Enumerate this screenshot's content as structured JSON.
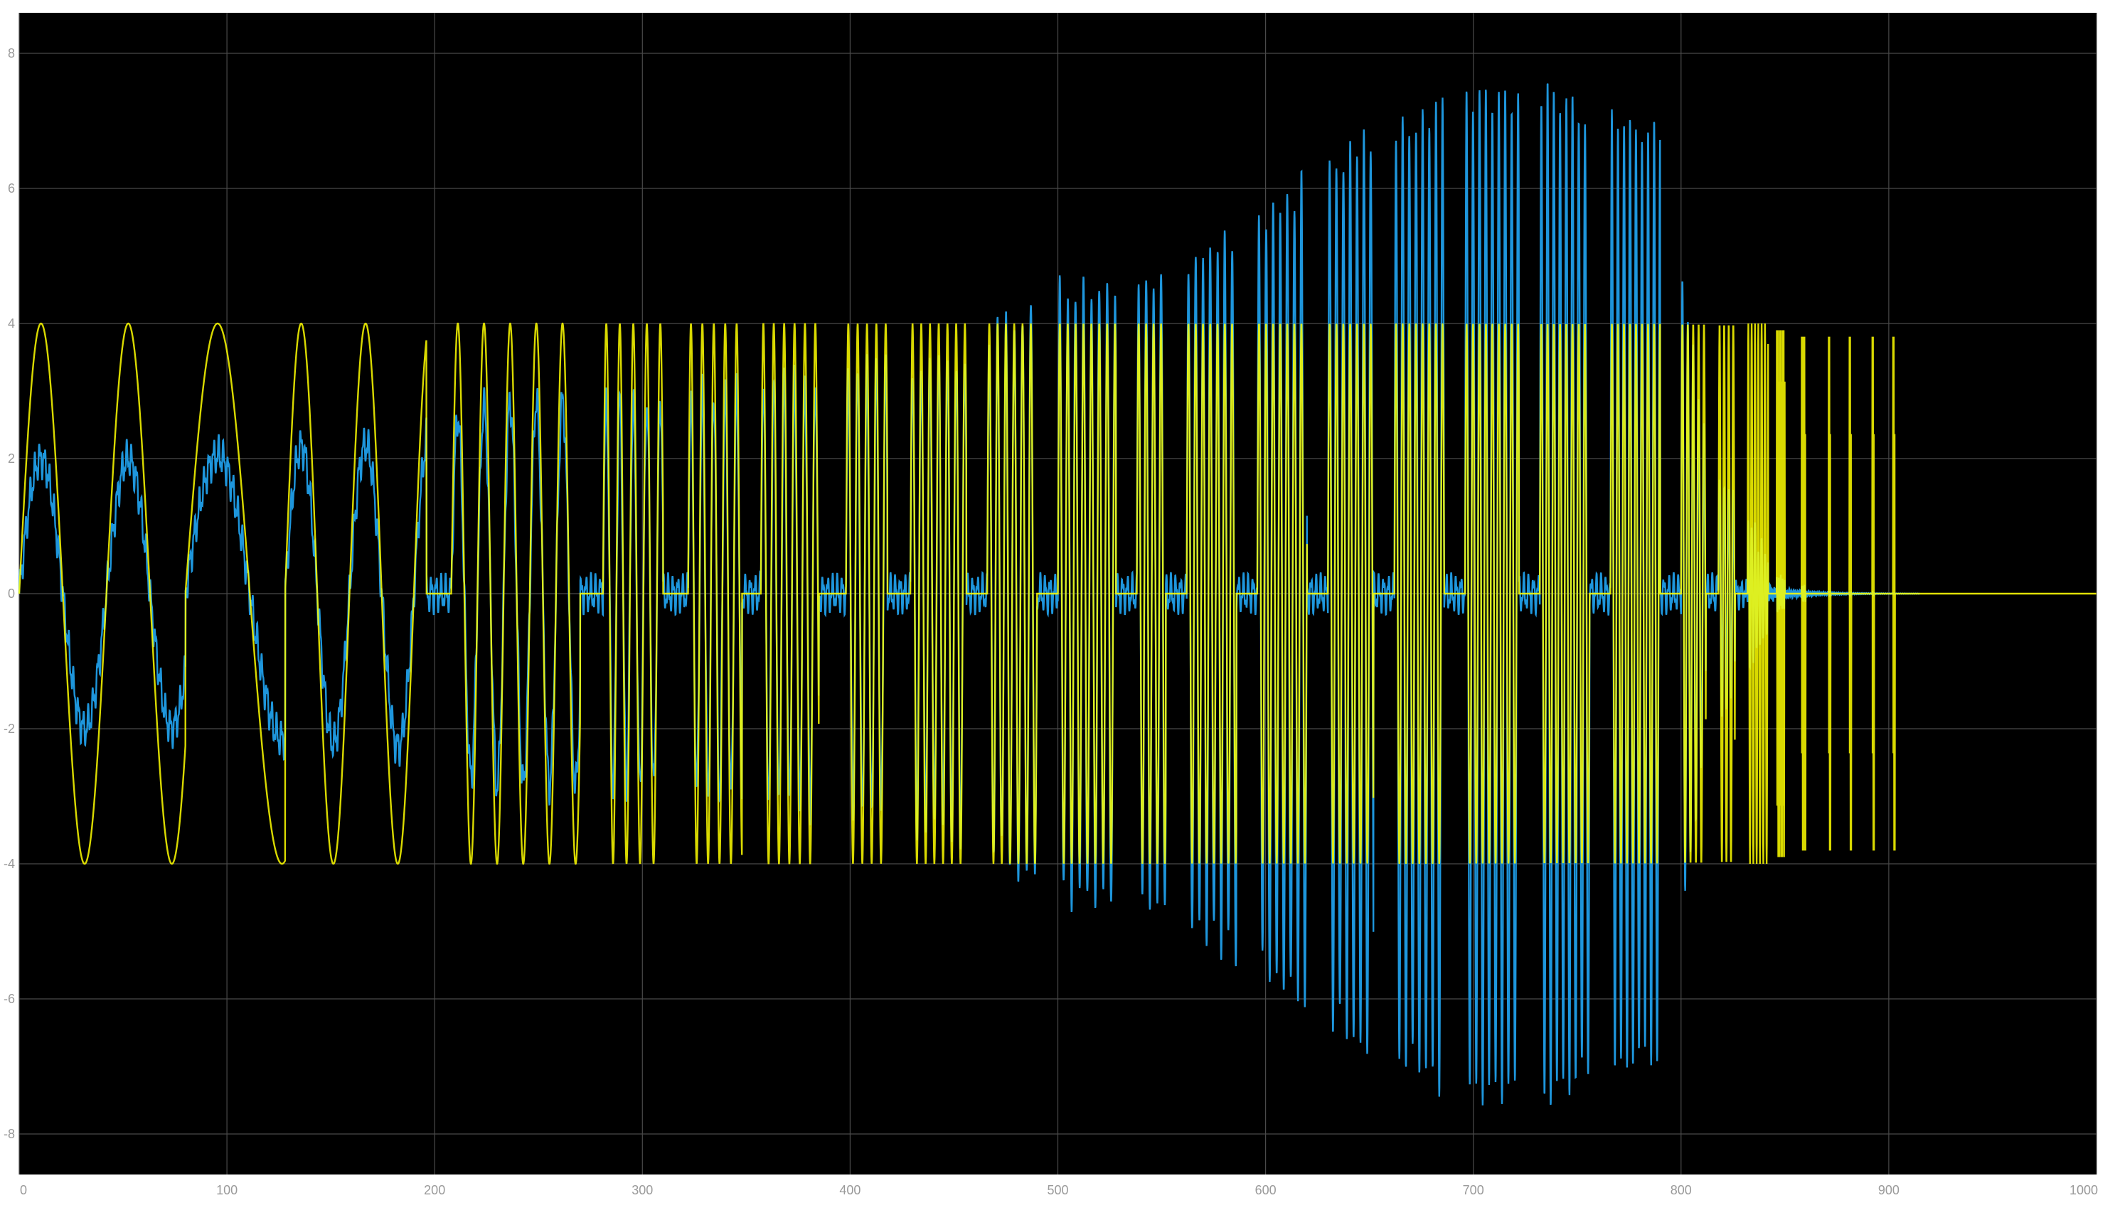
{
  "chart_data": {
    "type": "line",
    "title": "",
    "xlabel": "",
    "ylabel": "",
    "xlim": [
      0,
      1000
    ],
    "ylim": [
      -8.6,
      8.6
    ],
    "grid": true,
    "background": "#000000",
    "axes_color": "#9a9a9a",
    "grid_color": "#4a4a4a",
    "x_ticks": [
      "0",
      "100",
      "200",
      "300",
      "400",
      "500",
      "600",
      "700",
      "800",
      "900",
      "1000"
    ],
    "x_tick_values": [
      0,
      100,
      200,
      300,
      400,
      500,
      600,
      700,
      800,
      900,
      1000
    ],
    "y_ticks": [
      "8",
      "6",
      "4",
      "2",
      "0",
      "-2",
      "-4",
      "-6",
      "-8"
    ],
    "y_tick_values": [
      8,
      6,
      4,
      2,
      0,
      -2,
      -4,
      -6,
      -8
    ],
    "series": [
      {
        "color": "#ffff00",
        "kind": "reference input",
        "amplitude": 4,
        "end_x": 905,
        "bursts": [
          {
            "x_start": 0,
            "x_end": 80,
            "period": 42,
            "kind": "smooth"
          },
          {
            "x_start": 80,
            "x_end": 128,
            "period": 62,
            "kind": "smooth"
          },
          {
            "x_start": 128,
            "x_end": 196,
            "period": 31,
            "kind": "smooth"
          },
          {
            "x_start": 208,
            "x_end": 270,
            "period": 12.6,
            "kind": "smooth"
          },
          {
            "x_start": 281,
            "x_end": 310,
            "period": 6.5,
            "kind": "burst"
          },
          {
            "x_start": 322,
            "x_end": 348,
            "period": 5.5,
            "kind": "burst"
          },
          {
            "x_start": 357,
            "x_end": 385,
            "period": 5.0,
            "kind": "burst"
          },
          {
            "x_start": 398,
            "x_end": 418,
            "period": 4.5,
            "kind": "burst"
          },
          {
            "x_start": 429,
            "x_end": 456,
            "period": 4.2,
            "kind": "burst"
          },
          {
            "x_start": 466,
            "x_end": 490,
            "period": 4.0,
            "kind": "burst"
          },
          {
            "x_start": 500,
            "x_end": 528,
            "period": 3.8,
            "kind": "burst"
          },
          {
            "x_start": 538,
            "x_end": 552,
            "period": 3.6,
            "kind": "burst"
          },
          {
            "x_start": 562,
            "x_end": 586,
            "period": 3.5,
            "kind": "burst"
          },
          {
            "x_start": 596,
            "x_end": 620,
            "period": 3.4,
            "kind": "burst"
          },
          {
            "x_start": 630,
            "x_end": 652,
            "period": 3.3,
            "kind": "burst"
          },
          {
            "x_start": 662,
            "x_end": 686,
            "period": 3.2,
            "kind": "burst"
          },
          {
            "x_start": 696,
            "x_end": 722,
            "period": 3.1,
            "kind": "burst"
          },
          {
            "x_start": 732,
            "x_end": 756,
            "period": 3.0,
            "kind": "burst"
          },
          {
            "x_start": 766,
            "x_end": 790,
            "period": 2.9,
            "kind": "burst"
          },
          {
            "x_start": 800,
            "x_end": 812,
            "period": 2.6,
            "kind": "burst"
          },
          {
            "x_start": 818,
            "x_end": 826,
            "period": 2.2,
            "kind": "burst"
          },
          {
            "x_start": 832,
            "x_end": 842,
            "period": 1.6,
            "kind": "burst"
          },
          {
            "x_start": 846,
            "x_end": 850,
            "period": 1.4,
            "kind": "spikes"
          },
          {
            "x_start": 858,
            "x_end": 860,
            "period": 1.0,
            "kind": "spikes"
          },
          {
            "x_start": 871,
            "x_end": 872,
            "period": 1.0,
            "kind": "spikes"
          },
          {
            "x_start": 881,
            "x_end": 882,
            "period": 1.0,
            "kind": "spikes"
          },
          {
            "x_start": 892,
            "x_end": 893,
            "period": 1.0,
            "kind": "spikes"
          },
          {
            "x_start": 902,
            "x_end": 903,
            "period": 1.0,
            "kind": "spikes"
          }
        ]
      },
      {
        "color": "#1e96dc",
        "kind": "system response",
        "envelope_peaks": [
          {
            "x": 15,
            "y": 1.9
          },
          {
            "x": 78,
            "y": 1.9
          },
          {
            "x": 144,
            "y": 2.1
          },
          {
            "x": 175,
            "y": 2.1
          },
          {
            "x": 230,
            "y": 2.7
          },
          {
            "x": 300,
            "y": 2.7
          },
          {
            "x": 350,
            "y": 2.9
          },
          {
            "x": 400,
            "y": 3.1
          },
          {
            "x": 450,
            "y": 3.3
          },
          {
            "x": 500,
            "y": 4.2
          },
          {
            "x": 550,
            "y": 4.4
          },
          {
            "x": 600,
            "y": 5.3
          },
          {
            "x": 650,
            "y": 6.4
          },
          {
            "x": 700,
            "y": 7.0
          },
          {
            "x": 730,
            "y": 7.0
          },
          {
            "x": 760,
            "y": 6.8
          },
          {
            "x": 790,
            "y": 6.4
          },
          {
            "x": 810,
            "y": 2.4
          },
          {
            "x": 825,
            "y": 1.5
          },
          {
            "x": 845,
            "y": 0.3
          },
          {
            "x": 900,
            "y": 0.05
          }
        ]
      }
    ]
  }
}
